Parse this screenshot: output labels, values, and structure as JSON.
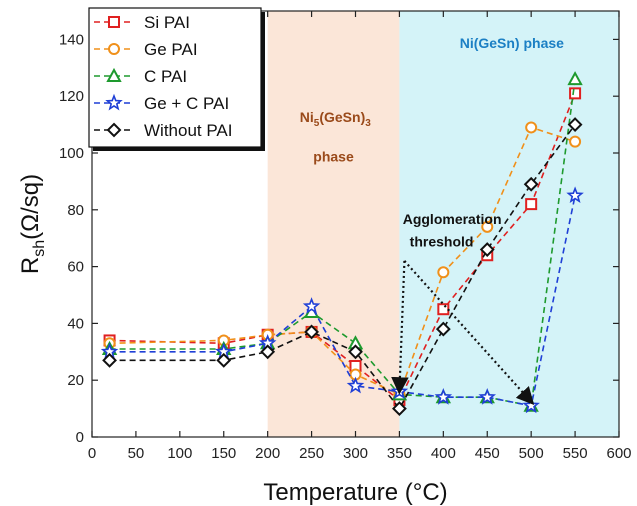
{
  "chart_data": {
    "type": "line",
    "xlabel": "Temperature (°C)",
    "ylabel": {
      "base": "R",
      "sub": "sh",
      "rest": "(Ω/sq)"
    },
    "xlim": [
      0,
      600
    ],
    "ylim": [
      0,
      150
    ],
    "xticks": [
      0,
      50,
      100,
      150,
      200,
      250,
      300,
      350,
      400,
      450,
      500,
      550,
      600
    ],
    "yticks": [
      0,
      20,
      40,
      60,
      80,
      100,
      120,
      140
    ],
    "grid": false,
    "legend_position": "top-left",
    "regions": [
      {
        "from": 200,
        "to": 350,
        "color": "#fbe6d8"
      },
      {
        "from": 350,
        "to": 600,
        "color": "#d4f3f8"
      }
    ],
    "region_labels": {
      "ni53": {
        "main": "Ni",
        "sub1": "5",
        "mid": "(GeSn)",
        "sub2": "3",
        "line2": "phase",
        "color": "#9a4a1a"
      },
      "nigesn": {
        "text": "Ni(GeSn) phase",
        "color": "#1b7fc4"
      }
    },
    "annotation": {
      "line1": "Agglomeration",
      "line2": "threshold",
      "from": [
        350,
        62
      ],
      "targets": [
        [
          350,
          15
        ],
        [
          500,
          11
        ]
      ]
    },
    "series": [
      {
        "name": "Si PAI",
        "color": "#e02020",
        "marker": "square",
        "x": [
          20,
          150,
          200,
          250,
          300,
          350,
          400,
          450,
          500,
          550
        ],
        "y": [
          34,
          33,
          36,
          37,
          25,
          13,
          45,
          64,
          82,
          121
        ]
      },
      {
        "name": "Ge PAI",
        "color": "#f0901a",
        "marker": "circle",
        "x": [
          20,
          150,
          200,
          250,
          300,
          350,
          400,
          450,
          500,
          550
        ],
        "y": [
          33,
          34,
          36,
          37,
          22,
          15,
          58,
          74,
          109,
          104
        ]
      },
      {
        "name": "C PAI",
        "color": "#1e9a2e",
        "marker": "triangle",
        "x": [
          20,
          150,
          200,
          250,
          300,
          350,
          400,
          450,
          500,
          550
        ],
        "y": [
          31,
          31,
          33,
          44,
          33,
          15,
          14,
          14,
          11,
          126
        ]
      },
      {
        "name": "Ge + C PAI",
        "color": "#1f3fd6",
        "marker": "star",
        "x": [
          20,
          150,
          200,
          250,
          300,
          350,
          400,
          450,
          500,
          550
        ],
        "y": [
          30,
          30,
          33,
          46,
          18,
          16,
          14,
          14,
          11,
          85
        ]
      },
      {
        "name": "Without PAI",
        "color": "#111111",
        "marker": "diamond",
        "x": [
          20,
          150,
          200,
          250,
          300,
          350,
          400,
          450,
          500,
          550
        ],
        "y": [
          27,
          27,
          30,
          37,
          30,
          10,
          38,
          66,
          89,
          110
        ]
      }
    ]
  }
}
